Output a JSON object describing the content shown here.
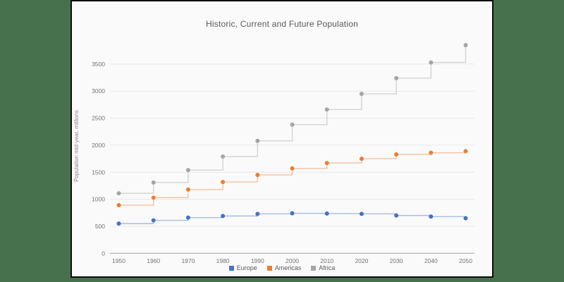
{
  "page": {
    "background_color": "#47704d",
    "card_background_color": "#fafafa",
    "card_border_color": "#0d0d0d"
  },
  "chart_data": {
    "type": "line",
    "step": true,
    "title": "Historic, Current and Future Population",
    "xlabel": "",
    "ylabel": "Population mid-year, millions",
    "x": [
      1950,
      1960,
      1970,
      1980,
      1990,
      2000,
      2010,
      2020,
      2030,
      2040,
      2050
    ],
    "y_ticks": [
      0,
      500,
      1000,
      1500,
      2000,
      2500,
      3000,
      3500
    ],
    "ylim": [
      0,
      4000
    ],
    "grid": true,
    "legend_position": "bottom",
    "series": [
      {
        "name": "Europe",
        "color": "#4472c4",
        "values": [
          550,
          610,
          660,
          690,
          730,
          740,
          735,
          730,
          700,
          680,
          650
        ]
      },
      {
        "name": "Americas",
        "color": "#ed7d31",
        "values": [
          890,
          1030,
          1180,
          1320,
          1450,
          1570,
          1670,
          1750,
          1830,
          1860,
          1890
        ]
      },
      {
        "name": "Africa",
        "color": "#a5a5a5",
        "values": [
          1110,
          1310,
          1540,
          1790,
          2080,
          2380,
          2660,
          2950,
          3240,
          3530,
          3850
        ]
      }
    ]
  }
}
